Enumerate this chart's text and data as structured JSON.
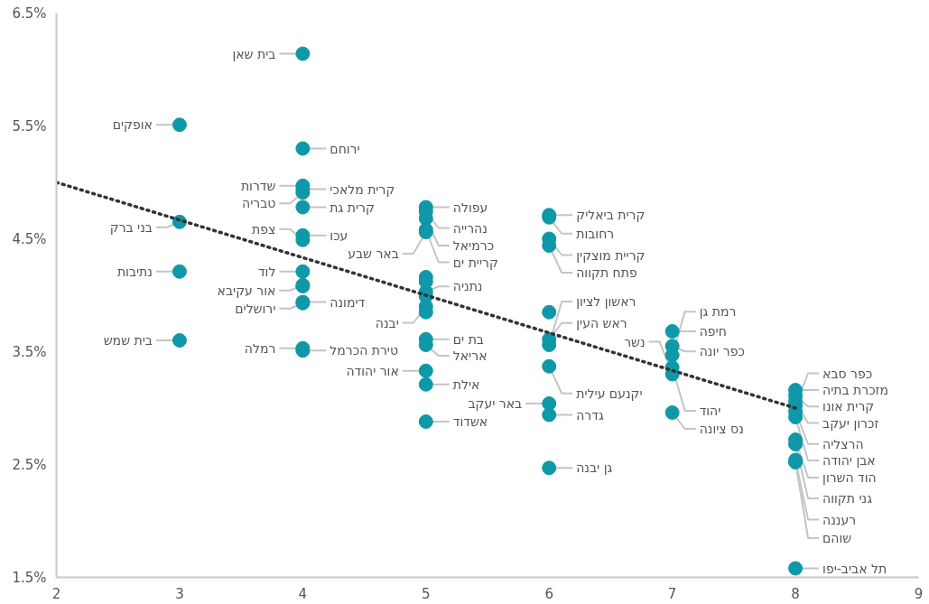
{
  "chart_data": {
    "type": "scatter",
    "xlim": [
      2,
      9
    ],
    "ylim": [
      1.5,
      6.5
    ],
    "xticks": [
      2,
      3,
      4,
      5,
      6,
      7,
      8,
      9
    ],
    "yticks": [
      {
        "value": 1.5,
        "label": "1.5%"
      },
      {
        "value": 2.5,
        "label": "2.5%"
      },
      {
        "value": 3.5,
        "label": "3.5%"
      },
      {
        "value": 4.5,
        "label": "4.5%"
      },
      {
        "value": 5.5,
        "label": "5.5%"
      },
      {
        "value": 6.5,
        "label": "6.5%"
      }
    ],
    "grid": false,
    "series": [
      {
        "marker": "circle",
        "color": "#0e98a8",
        "x": [
          3,
          3,
          3,
          3,
          4,
          4,
          4,
          4,
          4,
          4,
          4,
          4,
          4,
          4,
          4,
          4,
          4,
          4,
          4,
          5,
          5,
          5,
          5,
          5,
          5,
          5,
          5,
          5,
          5,
          5,
          5,
          5,
          5,
          5,
          5,
          6,
          6,
          6,
          6,
          6,
          6,
          6,
          6,
          6,
          6,
          6,
          7,
          7,
          7,
          7,
          7,
          7,
          8,
          8,
          8,
          8,
          8,
          8,
          8,
          8,
          8,
          8,
          8
        ],
        "values": [
          5.51,
          4.65,
          4.21,
          3.6,
          6.14,
          5.3,
          4.97,
          4.94,
          4.91,
          4.78,
          4.53,
          4.49,
          4.21,
          4.09,
          3.94,
          3.93,
          3.53,
          3.51,
          4.08,
          4.78,
          4.74,
          4.68,
          4.58,
          4.56,
          4.16,
          4.03,
          3.99,
          3.9,
          3.85,
          3.61,
          3.56,
          3.33,
          3.21,
          2.88,
          4.12,
          4.71,
          4.69,
          4.5,
          4.44,
          3.85,
          3.61,
          3.56,
          3.37,
          3.04,
          2.94,
          2.47,
          3.68,
          3.55,
          3.47,
          3.36,
          3.3,
          2.96,
          3.16,
          3.11,
          3.06,
          3.02,
          2.97,
          2.92,
          2.72,
          2.68,
          2.54,
          2.52,
          1.58
        ]
      },
      {
        "type": "line",
        "color": "#333333",
        "line_style": "dotted",
        "x": [
          2,
          8
        ],
        "values": [
          5.0,
          3.0
        ]
      }
    ],
    "annotations": [
      {
        "text": "אופקים",
        "x": 3,
        "y": 5.51
      },
      {
        "text": "בני ברק",
        "x": 3,
        "y": 4.65
      },
      {
        "text": "נתיבות",
        "x": 3,
        "y": 4.21
      },
      {
        "text": "בית שמש",
        "x": 3,
        "y": 3.6
      },
      {
        "text": "בית שאן",
        "x": 4,
        "y": 6.14
      },
      {
        "text": "ירוחם",
        "x": 4,
        "y": 5.3
      },
      {
        "text": "שדרות",
        "x": 4,
        "y": 4.97
      },
      {
        "text": "קרית מלאכי",
        "x": 4,
        "y": 4.94
      },
      {
        "text": "טבריה",
        "x": 4,
        "y": 4.91
      },
      {
        "text": "קרית גת",
        "x": 4,
        "y": 4.78
      },
      {
        "text": "עכו",
        "x": 4,
        "y": 4.53
      },
      {
        "text": "צפת",
        "x": 4,
        "y": 4.49
      },
      {
        "text": "לוד",
        "x": 4,
        "y": 4.21
      },
      {
        "text": "אור עקיבא",
        "x": 4,
        "y": 4.09
      },
      {
        "text": "דימונה",
        "x": 4,
        "y": 3.94
      },
      {
        "text": "ירושלים",
        "x": 4,
        "y": 3.93
      },
      {
        "text": "רמלה",
        "x": 4,
        "y": 3.53
      },
      {
        "text": "טירת הכרמל",
        "x": 4,
        "y": 3.51
      },
      {
        "text": "עפולה",
        "x": 5,
        "y": 4.78
      },
      {
        "text": "נהרייה",
        "x": 5,
        "y": 4.74
      },
      {
        "text": "כרמיאל",
        "x": 5,
        "y": 4.68
      },
      {
        "text": "קריית ים",
        "x": 5,
        "y": 4.58
      },
      {
        "text": "באר שבע",
        "x": 5,
        "y": 4.56
      },
      {
        "text": "יבנה",
        "x": 5,
        "y": 3.9
      },
      {
        "text": "נתניה",
        "x": 5,
        "y": 4.03
      },
      {
        "text": "בת ים",
        "x": 5,
        "y": 3.61
      },
      {
        "text": "אריאל",
        "x": 5,
        "y": 3.56
      },
      {
        "text": "אור יהודה",
        "x": 5,
        "y": 3.33
      },
      {
        "text": "אילת",
        "x": 5,
        "y": 3.21
      },
      {
        "text": "אשדוד",
        "x": 5,
        "y": 2.88
      },
      {
        "text": "קרית ביאליק",
        "x": 6,
        "y": 4.71
      },
      {
        "text": "רחובות",
        "x": 6,
        "y": 4.69
      },
      {
        "text": "קריית מוצקין",
        "x": 6,
        "y": 4.5
      },
      {
        "text": "פתח תקווה",
        "x": 6,
        "y": 4.44
      },
      {
        "text": "ראש העין",
        "x": 6,
        "y": 3.61
      },
      {
        "text": "ראשון לציון",
        "x": 6,
        "y": 3.56
      },
      {
        "text": "יקנעם עילית",
        "x": 6,
        "y": 3.37
      },
      {
        "text": "באר יעקב",
        "x": 6,
        "y": 3.04
      },
      {
        "text": "גדרה",
        "x": 6,
        "y": 2.94
      },
      {
        "text": "גן יבנה",
        "x": 6,
        "y": 2.47
      },
      {
        "text": "חיפה",
        "x": 7,
        "y": 3.68
      },
      {
        "text": "כפר יונה",
        "x": 7,
        "y": 3.55
      },
      {
        "text": "רמת גן",
        "x": 7,
        "y": 3.47
      },
      {
        "text": "יהוד",
        "x": 7,
        "y": 3.36
      },
      {
        "text": "נשר",
        "x": 7,
        "y": 3.3
      },
      {
        "text": "נס ציונה",
        "x": 7,
        "y": 2.96
      },
      {
        "text": "מזכרת בתיה",
        "x": 8,
        "y": 3.16
      },
      {
        "text": "קרית אונו",
        "x": 8,
        "y": 3.11
      },
      {
        "text": "זכרון יעקב",
        "x": 8,
        "y": 3.06
      },
      {
        "text": "כפר סבא",
        "x": 8,
        "y": 3.02
      },
      {
        "text": "הרצליה",
        "x": 8,
        "y": 2.97
      },
      {
        "text": "אבן יהודה",
        "x": 8,
        "y": 2.92
      },
      {
        "text": "הוד השרון",
        "x": 8,
        "y": 2.72
      },
      {
        "text": "גני תקווה",
        "x": 8,
        "y": 2.68
      },
      {
        "text": "רעננה",
        "x": 8,
        "y": 2.54
      },
      {
        "text": "שוהם",
        "x": 8,
        "y": 2.52
      },
      {
        "text": "תל אביב-יפו",
        "x": 8,
        "y": 1.58
      }
    ]
  }
}
